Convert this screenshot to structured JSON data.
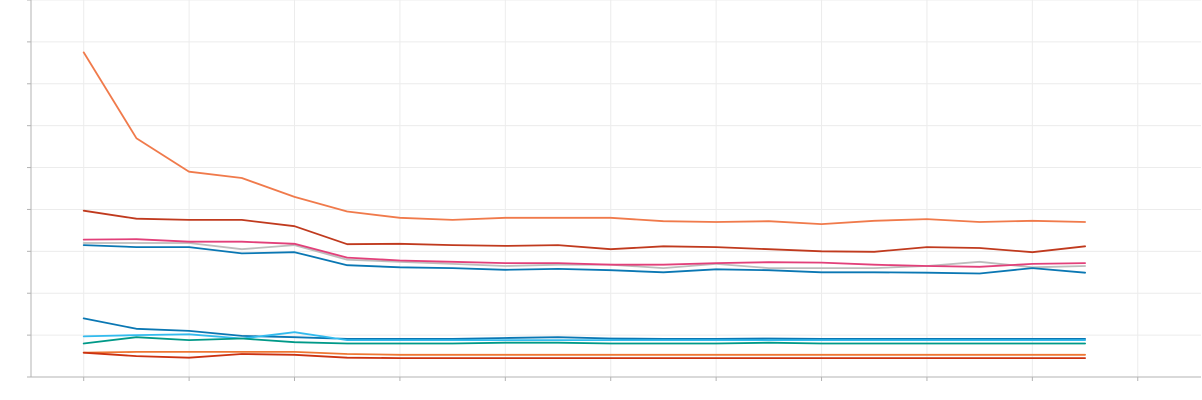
{
  "chart_data": {
    "type": "line",
    "title": "",
    "xlabel": "",
    "ylabel": "",
    "grid": true,
    "legend": "none",
    "x": [
      0,
      1,
      2,
      3,
      4,
      5,
      6,
      7,
      8,
      9,
      10,
      11,
      12,
      13,
      14,
      15,
      16,
      17,
      18,
      19
    ],
    "xlim": [
      -1,
      21.2
    ],
    "ylim": [
      0,
      9
    ],
    "series": [
      {
        "color": "#f07a4b",
        "values": [
          7.75,
          5.7,
          4.9,
          4.75,
          4.3,
          3.95,
          3.8,
          3.75,
          3.8,
          3.8,
          3.8,
          3.72,
          3.7,
          3.72,
          3.65,
          3.73,
          3.77,
          3.7,
          3.73,
          3.7
        ]
      },
      {
        "color": "#c03a1e",
        "values": [
          3.97,
          3.78,
          3.75,
          3.75,
          3.6,
          3.17,
          3.18,
          3.15,
          3.13,
          3.15,
          3.05,
          3.12,
          3.1,
          3.05,
          3.0,
          2.99,
          3.1,
          3.08,
          2.98,
          3.12
        ]
      },
      {
        "color": "#bdbdbd",
        "values": [
          3.2,
          3.2,
          3.2,
          3.05,
          3.15,
          2.8,
          2.75,
          2.7,
          2.65,
          2.68,
          2.68,
          2.6,
          2.7,
          2.6,
          2.6,
          2.6,
          2.65,
          2.75,
          2.62,
          2.65
        ]
      },
      {
        "color": "#e2407a",
        "values": [
          3.28,
          3.29,
          3.23,
          3.23,
          3.18,
          2.85,
          2.78,
          2.75,
          2.72,
          2.72,
          2.68,
          2.68,
          2.72,
          2.74,
          2.73,
          2.68,
          2.65,
          2.63,
          2.7,
          2.72
        ]
      },
      {
        "color": "#0a77b3",
        "values": [
          3.15,
          3.1,
          3.1,
          2.95,
          2.98,
          2.67,
          2.62,
          2.6,
          2.56,
          2.58,
          2.55,
          2.5,
          2.57,
          2.55,
          2.5,
          2.5,
          2.49,
          2.47,
          2.6,
          2.49
        ]
      },
      {
        "color": "#0a77b3",
        "values": [
          1.4,
          1.15,
          1.1,
          0.98,
          0.95,
          0.91,
          0.91,
          0.91,
          0.93,
          0.95,
          0.92,
          0.91,
          0.91,
          0.92,
          0.91,
          0.91,
          0.91,
          0.91,
          0.91,
          0.91
        ]
      },
      {
        "color": "#33bbee",
        "values": [
          0.97,
          1.0,
          1.02,
          0.92,
          1.07,
          0.88,
          0.88,
          0.88,
          0.88,
          0.88,
          0.88,
          0.88,
          0.88,
          0.88,
          0.88,
          0.88,
          0.88,
          0.88,
          0.88,
          0.88
        ]
      },
      {
        "color": "#009988",
        "values": [
          0.8,
          0.95,
          0.88,
          0.92,
          0.83,
          0.8,
          0.8,
          0.8,
          0.82,
          0.82,
          0.8,
          0.8,
          0.8,
          0.82,
          0.8,
          0.8,
          0.8,
          0.8,
          0.8,
          0.8
        ]
      },
      {
        "color": "#ee7733",
        "values": [
          0.58,
          0.6,
          0.6,
          0.6,
          0.6,
          0.55,
          0.53,
          0.53,
          0.53,
          0.53,
          0.53,
          0.53,
          0.53,
          0.53,
          0.53,
          0.53,
          0.53,
          0.53,
          0.53,
          0.53
        ]
      },
      {
        "color": "#cc3311",
        "values": [
          0.58,
          0.5,
          0.46,
          0.55,
          0.53,
          0.46,
          0.45,
          0.45,
          0.45,
          0.45,
          0.45,
          0.45,
          0.45,
          0.45,
          0.45,
          0.45,
          0.45,
          0.45,
          0.45,
          0.45
        ]
      }
    ]
  }
}
